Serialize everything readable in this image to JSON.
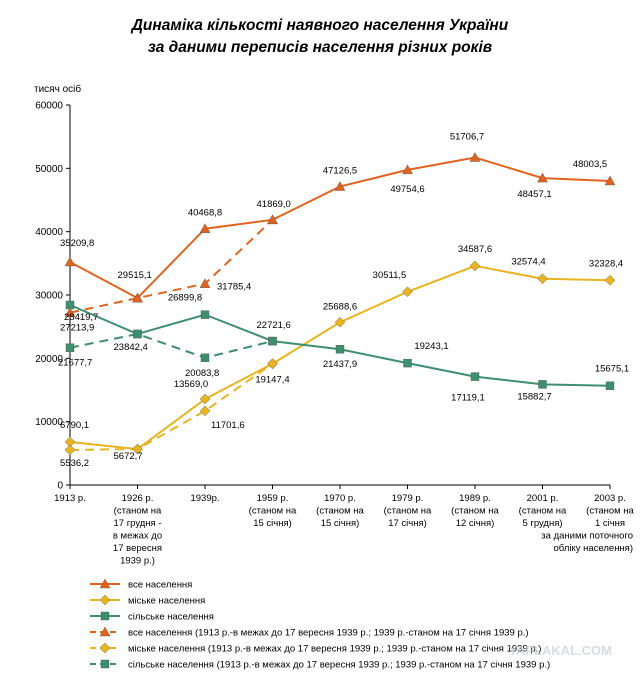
{
  "chart_data": {
    "type": "line",
    "title_lines": [
      "Динаміка кількості наявного населення України",
      "за даними переписів населення різних років"
    ],
    "ylabel": "тисяч осіб",
    "ylim": [
      0,
      60000
    ],
    "yticks": [
      0,
      10000,
      20000,
      30000,
      40000,
      50000,
      60000
    ],
    "grid": false,
    "categories": [
      [
        "1913 р."
      ],
      [
        "1926 р.",
        "(станом на",
        "17 грудня  -",
        "в межах до",
        "17 вересня",
        "1939 р.)"
      ],
      [
        "1939р."
      ],
      [
        "1959 р.",
        "(станом  на",
        "15 січня)"
      ],
      [
        "1970 р.",
        "(станом  на",
        "15 січня)"
      ],
      [
        "1979 р.",
        "(станом  на",
        "17 січня)"
      ],
      [
        "1989 р.",
        "(станом  на",
        "12 січня)"
      ],
      [
        "2001 р.",
        "(станом  на",
        "5 грудня)"
      ],
      [
        "2003 р.",
        "(станом на",
        "1 січня",
        "за даними поточного",
        "обліку населення)"
      ]
    ],
    "series": [
      {
        "name": "все населення",
        "style": "solid",
        "marker": "triangle",
        "color": "#E2631E",
        "points": [
          [
            0,
            35209.8
          ],
          [
            1,
            29515.1
          ],
          [
            2,
            40468.8
          ],
          [
            3,
            41869.0
          ],
          [
            4,
            47126.5
          ],
          [
            5,
            49754.6
          ],
          [
            6,
            51706.7
          ],
          [
            7,
            48457.1
          ],
          [
            8,
            48003.5
          ]
        ],
        "labels": [
          "35209,8",
          "29515,1",
          "40468,8",
          "41869,0",
          "47126,5",
          "49754,6",
          "51706,7",
          "48457,1",
          "48003,5"
        ]
      },
      {
        "name": "міське населення",
        "style": "solid",
        "marker": "diamond",
        "color": "#E8B420",
        "points": [
          [
            0,
            6790.1
          ],
          [
            1,
            5672.7
          ],
          [
            2,
            13569.0
          ],
          [
            3,
            19147.4
          ],
          [
            4,
            25688.6
          ],
          [
            5,
            30511.5
          ],
          [
            6,
            34587.6
          ],
          [
            7,
            32574.4
          ],
          [
            8,
            32328.4
          ]
        ],
        "labels": [
          "6790,1",
          "5672,7",
          "13569,0",
          "19147,4",
          "25688,6",
          "30511,5",
          "34587,6",
          "32574,4",
          "32328,4"
        ]
      },
      {
        "name": "сільське населення",
        "style": "solid",
        "marker": "square",
        "color": "#3E8E70",
        "points": [
          [
            0,
            28419.7
          ],
          [
            1,
            23842.4
          ],
          [
            2,
            26899.8
          ],
          [
            3,
            22721.6
          ],
          [
            4,
            21437.9
          ],
          [
            5,
            19243.1
          ],
          [
            6,
            17119.1
          ],
          [
            7,
            15882.7
          ],
          [
            8,
            15675.1
          ]
        ],
        "labels": [
          "28419,7",
          "23842,4",
          "26899,8",
          "22721,6",
          "21437,9",
          "19243,1",
          "17119,1",
          "15882,7",
          "15675,1"
        ]
      },
      {
        "name": "все населення (1913 р.-в межах до 17 вересня 1939 р.; 1939 р.-станом на 17 січня 1939 р.)",
        "style": "dashed",
        "marker": "triangle",
        "color": "#E2631E",
        "points": [
          [
            0,
            27213.9
          ],
          [
            1,
            29515.1
          ],
          [
            2,
            31785.4
          ],
          [
            3,
            41869.0
          ]
        ],
        "labels": [
          "27213,9",
          null,
          "31785,4",
          null
        ]
      },
      {
        "name": "міське населення (1913 р.-в межах до 17 вересня 1939 р.; 1939 р.-станом на 17 січня 1939 р.)",
        "style": "dashed",
        "marker": "diamond",
        "color": "#E8B420",
        "points": [
          [
            0,
            5536.2
          ],
          [
            1,
            5672.7
          ],
          [
            2,
            11701.6
          ],
          [
            3,
            19147.4
          ]
        ],
        "labels": [
          "5536,2",
          null,
          "11701,6",
          null
        ]
      },
      {
        "name": "сільське населення (1913 р.-в межах до 17 вересня 1939 р.; 1939 р.-станом на 17 січня 1939 р.)",
        "style": "dashed",
        "marker": "square",
        "color": "#3E8E70",
        "points": [
          [
            0,
            21677.7
          ],
          [
            1,
            23842.4
          ],
          [
            2,
            20083.8
          ],
          [
            3,
            22721.6
          ]
        ],
        "labels": [
          "21677,7",
          null,
          "20083,8",
          null
        ]
      }
    ],
    "legend_position": "bottom-left"
  },
  "watermark": "YAPLAKAL.COM"
}
